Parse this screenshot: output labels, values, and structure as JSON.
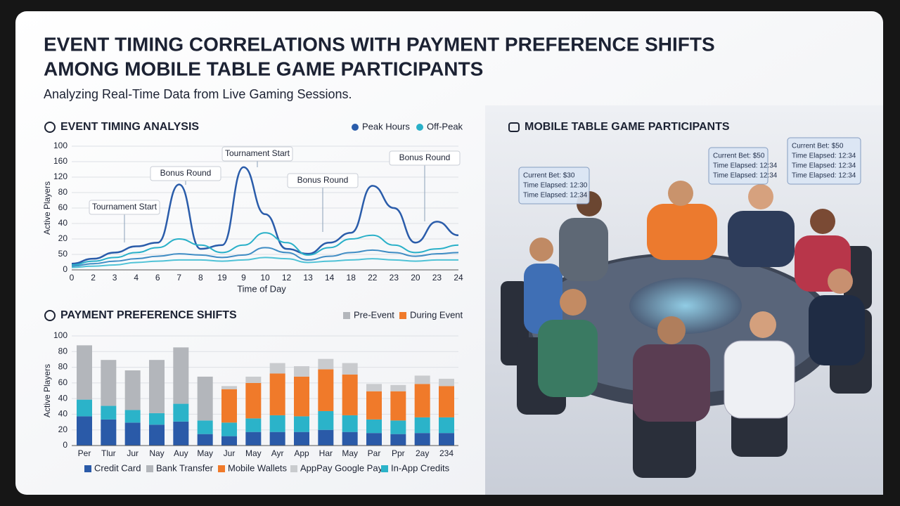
{
  "title": [
    "EVENT TIMING CORRELATIONS WITH PAYMENT PREFERENCE SHIFTS",
    "AMONG MOBILE TABLE GAME PARTICIPANTS"
  ],
  "subtitle": "Analyzing Real-Time Data from Live Gaming Sessions.",
  "chart_data": [
    {
      "type": "line",
      "title": "EVENT TIMING ANALYSIS",
      "x_label": "Time of Day",
      "y_label": "Active Players",
      "categories": [
        "0",
        "2",
        "3",
        "4",
        "6",
        "7",
        "8",
        "19",
        "9",
        "10",
        "12",
        "13",
        "14",
        "18",
        "22",
        "23",
        "20",
        "23",
        "24"
      ],
      "series": [
        {
          "name": "Peak Hours",
          "color": "#2a5caa",
          "values": [
            5,
            9,
            14,
            19,
            22,
            69,
            17,
            20,
            83,
            45,
            17,
            13,
            22,
            30,
            68,
            50,
            22,
            39,
            28
          ]
        },
        {
          "name": "Off-Peak",
          "color": "#29b0c8",
          "values": [
            4,
            7,
            10,
            14,
            18,
            25,
            20,
            14,
            20,
            30,
            22,
            12,
            18,
            25,
            28,
            20,
            14,
            17,
            20
          ]
        },
        {
          "color": "#3f8cc4",
          "values": [
            3,
            5,
            7,
            9,
            11,
            13,
            12,
            10,
            12,
            18,
            14,
            8,
            11,
            14,
            16,
            14,
            11,
            13,
            14
          ]
        },
        {
          "color": "#4fc2d6",
          "values": [
            2,
            3,
            4,
            6,
            7,
            8,
            8,
            7,
            8,
            10,
            9,
            6,
            7,
            8,
            9,
            8,
            7,
            8,
            8
          ]
        }
      ],
      "ylim": [
        0,
        100
      ],
      "yticks": [
        0,
        {
          "value": 12.5,
          "label": "50"
        },
        {
          "value": 25,
          "label": "20"
        },
        {
          "value": 37.5,
          "label": "40"
        },
        {
          "value": 50,
          "label": "60"
        },
        {
          "value": 62.5,
          "label": "80"
        },
        {
          "value": 75,
          "label": "120"
        },
        {
          "value": 87.5,
          "label": "160"
        },
        100
      ],
      "grid": true,
      "annotations": [
        "Tournament Start",
        "Bonus Round",
        "Tournament Start",
        "Bonus Round",
        "Bonus Round"
      ]
    },
    {
      "type": "stacked_bar",
      "title": "PAYMENT PREFERENCE SHIFTS",
      "y_label": "Active Players",
      "phase_legend": [
        {
          "name": "Pre-Event",
          "color": "#b3b6bb"
        },
        {
          "name": "During Event",
          "color": "#f07a2a"
        }
      ],
      "categories": [
        "Per",
        "Tlur",
        "Jur",
        "Nay",
        "Auy",
        "May",
        "Jur",
        "May",
        "Ayr",
        "App",
        "Har",
        "May",
        "Par",
        "Ppr",
        "2ay",
        "234"
      ],
      "series": [
        {
          "name": "Credit Card",
          "color": "#2a5aa8",
          "values": [
            28,
            25,
            22,
            20,
            23,
            11,
            9,
            13,
            13,
            13,
            15,
            13,
            12,
            11,
            12,
            12
          ]
        },
        {
          "name": "In-App Credits",
          "color": "#2bb3c9",
          "values": [
            16,
            13,
            12,
            11,
            17,
            13,
            13,
            13,
            16,
            15,
            18,
            16,
            13,
            13,
            15,
            15
          ]
        },
        {
          "name": "Bank Transfer",
          "color": "#b3b6bb",
          "values": [
            52,
            44,
            38,
            51,
            54,
            42,
            null,
            null,
            null,
            null,
            null,
            null,
            null,
            null,
            null,
            null
          ]
        },
        {
          "name": "Mobile Wallets",
          "color": "#f07a2a",
          "values": [
            null,
            null,
            null,
            null,
            null,
            null,
            32,
            34,
            40,
            38,
            40,
            39,
            27,
            28,
            32,
            30
          ]
        },
        {
          "name": "AppPay Google Pay",
          "color": "#c9cbce",
          "values": [
            null,
            null,
            null,
            null,
            null,
            null,
            3,
            6,
            10,
            10,
            10,
            11,
            7,
            6,
            8,
            7
          ]
        }
      ],
      "ylim": [
        0,
        105
      ],
      "yticks": [
        0,
        {
          "value": 15,
          "label": "20"
        },
        {
          "value": 30,
          "label": "40"
        },
        {
          "value": 45,
          "label": "40"
        },
        {
          "value": 60,
          "label": "60"
        },
        {
          "value": 75,
          "label": "80"
        },
        {
          "value": 90,
          "label": "80"
        },
        {
          "value": 105,
          "label": "100"
        }
      ],
      "grid": true,
      "legend_order": [
        0,
        2,
        3,
        4,
        1
      ]
    }
  ],
  "illustration": {
    "title": "MOBILE TABLE GAME PARTICIPANTS",
    "cards": [
      [
        "Current Bet: $30",
        "Time Elapsed: 12:30",
        "Time Elapsed: 12:34"
      ],
      [
        "Current Bet: $50",
        "Time Elapsed: 12:34",
        "Time Elapsed: 12:34"
      ],
      [
        "Current Bet: $50",
        "Time Elapsed: 12:34",
        "Time Elapsed: 12:34",
        "Time Elapsed: 12:34"
      ]
    ]
  }
}
